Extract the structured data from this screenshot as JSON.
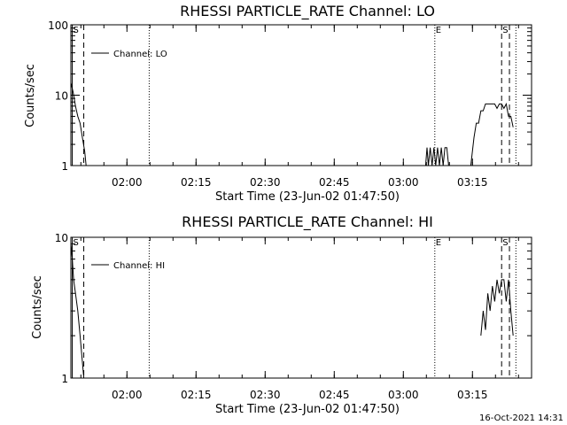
{
  "timestamp": "16-Oct-2021 14:31",
  "colors": {
    "background": "#ffffff",
    "ink": "#000000"
  },
  "chart_data": [
    {
      "type": "line",
      "title": "RHESSI PARTICLE_RATE Channel: LO",
      "xlabel": "Start Time (23-Jun-02 01:47:50)",
      "ylabel": "Counts/sec",
      "yscale": "log",
      "ylim": [
        1,
        100
      ],
      "ytick_values": [
        1,
        10,
        100
      ],
      "ytick_labels": [
        "1",
        "10",
        "100"
      ],
      "xlim_minutes": [
        0,
        100
      ],
      "xtick_minutes": [
        12.17,
        27.17,
        42.17,
        57.17,
        72.17,
        87.17
      ],
      "xtick_labels": [
        "02:00",
        "02:15",
        "02:30",
        "02:45",
        "03:00",
        "03:15"
      ],
      "legend": {
        "label": "Channel: LO",
        "position": "top-left"
      },
      "markers": [
        {
          "label": "S",
          "minute": 0.3,
          "style": "solid"
        },
        {
          "label": "",
          "minute": 2.8,
          "style": "dashed"
        },
        {
          "label": "",
          "minute": 17.0,
          "style": "dotted"
        },
        {
          "label": "E",
          "minute": 79.0,
          "style": "dotted"
        },
        {
          "label": "S",
          "minute": 93.5,
          "style": "dashed"
        },
        {
          "label": "",
          "minute": 95.2,
          "style": "dashed"
        },
        {
          "label": "",
          "minute": 96.6,
          "style": "dotted"
        }
      ],
      "series": [
        {
          "name": "Channel: LO",
          "segments": [
            [
              [
                0.0,
                15
              ],
              [
                0.5,
                11
              ],
              [
                1.0,
                7
              ],
              [
                1.5,
                5
              ],
              [
                2.0,
                4
              ],
              [
                2.5,
                2.5
              ],
              [
                3.0,
                1.6
              ],
              [
                3.3,
                1.0
              ]
            ],
            [
              [
                77.0,
                1.0
              ],
              [
                77.3,
                1.8
              ],
              [
                77.6,
                1.0
              ],
              [
                78.0,
                1.8
              ],
              [
                78.4,
                1.0
              ],
              [
                78.8,
                1.8
              ],
              [
                79.2,
                1.0
              ],
              [
                79.6,
                1.8
              ],
              [
                80.0,
                1.0
              ],
              [
                80.4,
                1.8
              ],
              [
                80.8,
                1.0
              ],
              [
                81.2,
                1.8
              ],
              [
                81.6,
                1.8
              ],
              [
                82.0,
                1.0
              ]
            ],
            [
              [
                86.8,
                1.0
              ],
              [
                87.5,
                2.5
              ],
              [
                88.0,
                4
              ],
              [
                88.5,
                4
              ],
              [
                89.0,
                6
              ],
              [
                89.5,
                6
              ],
              [
                90.0,
                7.5
              ],
              [
                92.0,
                7.5
              ],
              [
                92.5,
                6.5
              ],
              [
                93.0,
                7.5
              ],
              [
                93.5,
                7.5
              ],
              [
                94.0,
                6.5
              ],
              [
                94.5,
                7.5
              ],
              [
                95.0,
                5
              ],
              [
                95.5,
                5
              ],
              [
                96.0,
                3.5
              ]
            ]
          ]
        }
      ]
    },
    {
      "type": "line",
      "title": "RHESSI PARTICLE_RATE Channel: HI",
      "xlabel": "Start Time (23-Jun-02 01:47:50)",
      "ylabel": "Counts/sec",
      "yscale": "log",
      "ylim": [
        1,
        10
      ],
      "ytick_values": [
        1,
        10
      ],
      "ytick_labels": [
        "1",
        "10"
      ],
      "xlim_minutes": [
        0,
        100
      ],
      "xtick_minutes": [
        12.17,
        27.17,
        42.17,
        57.17,
        72.17,
        87.17
      ],
      "xtick_labels": [
        "02:00",
        "02:15",
        "02:30",
        "02:45",
        "03:00",
        "03:15"
      ],
      "legend": {
        "label": "Channel: HI",
        "position": "top-left"
      },
      "markers": [
        {
          "label": "S",
          "minute": 0.3,
          "style": "solid"
        },
        {
          "label": "",
          "minute": 2.8,
          "style": "dashed"
        },
        {
          "label": "",
          "minute": 17.0,
          "style": "dotted"
        },
        {
          "label": "E",
          "minute": 79.0,
          "style": "dotted"
        },
        {
          "label": "S",
          "minute": 93.5,
          "style": "dashed"
        },
        {
          "label": "",
          "minute": 95.2,
          "style": "dashed"
        },
        {
          "label": "",
          "minute": 96.6,
          "style": "dotted"
        }
      ],
      "series": [
        {
          "name": "Channel: HI",
          "segments": [
            [
              [
                0.0,
                9
              ],
              [
                0.3,
                7
              ],
              [
                0.6,
                5
              ],
              [
                1.0,
                4
              ],
              [
                1.5,
                3
              ],
              [
                2.0,
                2
              ],
              [
                2.5,
                1.3
              ],
              [
                2.8,
                1.0
              ]
            ],
            [
              [
                89.0,
                2.0
              ],
              [
                89.5,
                3.0
              ],
              [
                90.0,
                2.2
              ],
              [
                90.5,
                4.0
              ],
              [
                91.0,
                3.0
              ],
              [
                91.5,
                4.5
              ],
              [
                92.0,
                3.5
              ],
              [
                92.5,
                5.0
              ],
              [
                93.0,
                4.0
              ],
              [
                93.5,
                5.0
              ],
              [
                94.0,
                5.0
              ],
              [
                94.5,
                3.5
              ],
              [
                95.0,
                5.0
              ],
              [
                95.5,
                3.0
              ],
              [
                96.0,
                2.0
              ]
            ]
          ]
        }
      ]
    }
  ]
}
